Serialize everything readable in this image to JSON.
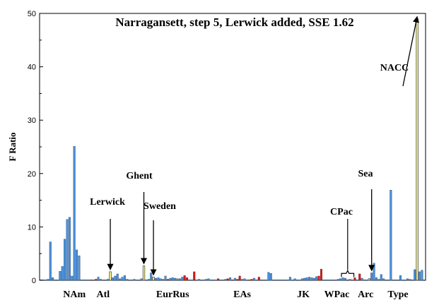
{
  "chart_data": {
    "type": "bar",
    "title": "Narragansett, step 5, Lerwick added, SSE 1.62",
    "ylabel": "F Ratio",
    "xlabel": "",
    "ylim": [
      0,
      50
    ],
    "yticks": [
      0,
      10,
      20,
      30,
      40,
      50
    ],
    "grid": false,
    "colors": {
      "blue": "#4a90d9",
      "red": "#cc1f1f",
      "yellow": "#f3f08a",
      "yellow_edge": "#3a3a3a",
      "bar_edge": "#1c3f6e"
    },
    "groups": [
      {
        "label": "NAm",
        "center": 14.5
      },
      {
        "label": "Atl",
        "center": 26.5
      },
      {
        "label": "EurRus",
        "center": 55.5
      },
      {
        "label": "EAs",
        "center": 84.5
      },
      {
        "label": "JK",
        "center": 110
      },
      {
        "label": "WPac",
        "center": 124
      },
      {
        "label": "Arc",
        "center": 136
      },
      {
        "label": "Type",
        "center": 149.5
      }
    ],
    "annotations": [
      {
        "text": "Lerwick",
        "bar": 29,
        "value": 1.6
      },
      {
        "text": "Ghent",
        "bar": 43,
        "value": 2.7
      },
      {
        "text": "Sweden",
        "bar": 47,
        "value": 0.6
      },
      {
        "text": "CPac",
        "bar": 128,
        "value": 0.5,
        "bracket": [
          126,
          130
        ]
      },
      {
        "text": "Sea",
        "bar": 138,
        "value": 1.4
      },
      {
        "text": "NACC",
        "bar": 157,
        "value": 49
      }
    ],
    "series": [
      {
        "values": [
          0.1,
          0.1,
          0.1,
          0.2,
          7.2,
          0.5,
          0.1,
          0.1,
          1.7,
          2.6,
          7.7,
          11.4,
          11.8,
          0.8,
          25.1,
          5.7,
          4.6,
          0.1,
          0.1,
          0.1,
          0.1,
          0.1,
          0.1,
          0.2,
          0.6,
          0.2,
          0.1,
          0.1,
          0.2,
          1.6,
          0.5,
          0.8,
          1.2,
          0.3,
          0.6,
          0.9,
          0.2,
          0.1,
          0.1,
          0.2,
          0.1,
          0.1,
          0.3,
          2.7,
          0.1,
          0.2,
          1.4,
          0.6,
          0.4,
          0.5,
          0.3,
          0.2,
          0.8,
          0.2,
          0.4,
          0.5,
          0.4,
          0.3,
          0.3,
          0.6,
          0.9,
          0.5,
          0.1,
          0.1,
          1.6,
          0.1,
          0.2,
          0.1,
          0.1,
          0.2,
          0.3,
          0.1,
          0.1,
          0.1,
          0.3,
          0.1,
          0.1,
          0.2,
          0.3,
          0.5,
          0.1,
          0.4,
          0.2,
          0.8,
          0.2,
          0.3,
          0.1,
          0.1,
          0.2,
          0.4,
          0.1,
          0.6,
          0.1,
          0.1,
          0.1,
          1.5,
          1.3,
          0.1,
          0.1,
          0.1,
          0.1,
          0.1,
          0.1,
          0.1,
          0.6,
          0.1,
          0.3,
          0.1,
          0.1,
          0.3,
          0.4,
          0.5,
          0.6,
          0.5,
          0.4,
          0.7,
          0.8,
          2.1,
          0.1,
          0.1,
          0.1,
          0.1,
          0.1,
          0.1,
          0.2,
          0.3,
          0.5,
          0.4,
          0.1,
          0.2,
          0.1,
          0.5,
          0.1,
          1.2,
          0.4,
          0.1,
          0.1,
          0.3,
          1.4,
          3.2,
          0.5,
          0.2,
          1.1,
          0.3,
          0.1,
          0.1,
          16.9,
          0.1,
          0.1,
          0.1,
          0.9,
          0.1,
          0.1,
          0.3,
          0.2,
          0.1,
          2.0,
          49.0,
          1.6,
          1.9,
          0.1
        ],
        "colors": [
          "b",
          "b",
          "b",
          "b",
          "b",
          "b",
          "b",
          "b",
          "b",
          "b",
          "b",
          "b",
          "b",
          "b",
          "b",
          "b",
          "b",
          "b",
          "b",
          "b",
          "b",
          "r",
          "b",
          "r",
          "b",
          "b",
          "b",
          "b",
          "b",
          "y",
          "b",
          "b",
          "b",
          "b",
          "b",
          "b",
          "b",
          "b",
          "b",
          "b",
          "b",
          "b",
          "b",
          "y",
          "b",
          "b",
          "b",
          "y",
          "b",
          "b",
          "b",
          "b",
          "b",
          "r",
          "b",
          "b",
          "b",
          "b",
          "b",
          "b",
          "r",
          "r",
          "b",
          "b",
          "r",
          "b",
          "b",
          "b",
          "b",
          "b",
          "b",
          "b",
          "b",
          "b",
          "r",
          "b",
          "b",
          "b",
          "r",
          "b",
          "r",
          "b",
          "r",
          "r",
          "b",
          "b",
          "b",
          "r",
          "r",
          "b",
          "b",
          "r",
          "b",
          "b",
          "b",
          "b",
          "b",
          "b",
          "b",
          "b",
          "b",
          "b",
          "b",
          "b",
          "b",
          "b",
          "b",
          "b",
          "b",
          "b",
          "b",
          "b",
          "b",
          "b",
          "b",
          "b",
          "r",
          "r",
          "b",
          "b",
          "b",
          "b",
          "b",
          "b",
          "b",
          "b",
          "b",
          "b",
          "r",
          "b",
          "b",
          "r",
          "b",
          "r",
          "b",
          "b",
          "b",
          "y",
          "b",
          "b",
          "b",
          "b",
          "b",
          "b",
          "b",
          "b",
          "b",
          "b",
          "b",
          "b",
          "b",
          "b",
          "b",
          "b",
          "b",
          "b",
          "b",
          "y",
          "b",
          "b",
          "b"
        ]
      }
    ]
  }
}
